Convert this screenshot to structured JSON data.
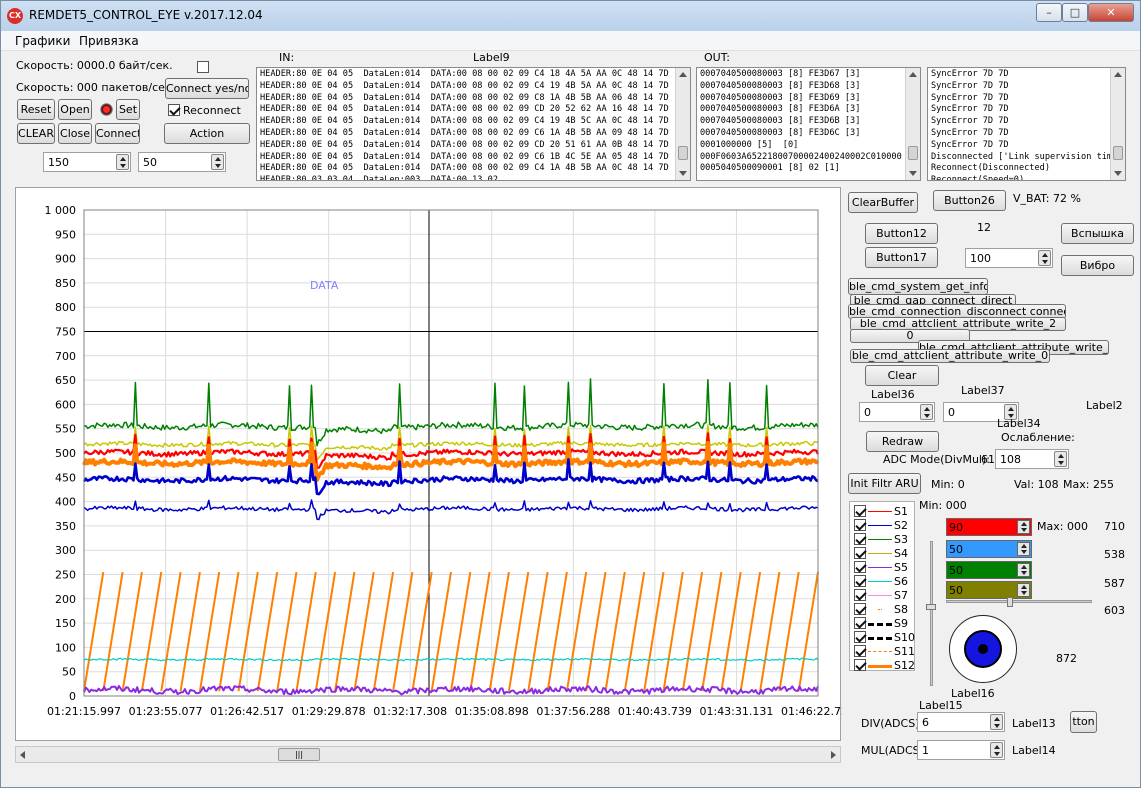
{
  "window": {
    "title": "REMDET5_CONTROL_EYE v.2017.12.04",
    "icon_label": "CX",
    "minimize": "–",
    "maximize": "□",
    "close": "✕"
  },
  "menu": [
    "Графики",
    "Привязка"
  ],
  "status": {
    "speed_bytes": "Скорость: 0000.0 байт/сек.",
    "speed_packets": "Скорость: 000 пакетов/сек."
  },
  "buttons": {
    "connect_yes_no": "Connect yes/no",
    "reset": "Reset",
    "open": "Open",
    "set": "Set",
    "clear_caps": "CLEAR",
    "close": "Close",
    "connect": "Connect",
    "action": "Action",
    "clear_buffer": "ClearBuffer",
    "button26": "Button26",
    "button12": "Button12",
    "button17": "Button17",
    "vspyshka": "Вспышка",
    "vibro": "Вибро",
    "ble_get_info": "ble_cmd_system_get_info",
    "ble_gap_connect": "ble_cmd_gap_connect_direct",
    "ble_disconnect": "ble_cmd_connection_disconnect connection",
    "ble_write2": "ble_cmd_attclient_attribute_write_2",
    "zero": "0",
    "ble_write1": "ble_cmd_attclient_attribute_write_1",
    "ble_write0": "ble_cmd_attclient_attribute_write_0",
    "clear": "Clear",
    "redraw": "Redraw",
    "init_filtr": "Init Filtr ARU",
    "tton": "tton"
  },
  "reconnect": {
    "label": "Reconnect",
    "checked": true
  },
  "spins": {
    "a": "150",
    "b": "50",
    "s100": "100",
    "l36": "0",
    "l37": "0",
    "adc": "108",
    "div": "6",
    "mul": "1"
  },
  "labels": {
    "in": "IN:",
    "label9": "Label9",
    "out": "OUT:",
    "vbat": "V_BAT:  72  %",
    "n12": "12",
    "label36": "Label36",
    "label37": "Label37",
    "label2": "Label2",
    "label34": "Label34",
    "oslablenie": "Ослабление:",
    "adc_mode": "ADC Mode(DivMul):",
    "adc_val": "61",
    "min_init": "Min:  0",
    "val_init": "Val:  108",
    "max_init": "Max:  255",
    "min2": "Min:  000",
    "max2": "Max:  000",
    "n710": "710",
    "n538": "538",
    "n587": "587",
    "n603": "603",
    "n872": "872",
    "label16": "Label16",
    "label15": "Label15",
    "div_lbl": "DIV(ADCS)",
    "label13": "Label13",
    "mul_lbl": "MUL(ADCS)",
    "label14": "Label14"
  },
  "in_log": [
    "HEADER:80 0E 04 05  DataLen:014  DATA:00 08 00 02 09 C4 18 4A 5A AA 0C 48 14 7D",
    "HEADER:80 0E 04 05  DataLen:014  DATA:00 08 00 02 09 C4 19 4B 5A AA 0C 48 14 7D",
    "HEADER:80 0E 04 05  DataLen:014  DATA:00 08 00 02 09 C8 1A 4B 5B AA 06 48 14 7D",
    "HEADER:80 0E 04 05  DataLen:014  DATA:00 08 00 02 09 CD 20 52 62 AA 16 48 14 7D",
    "HEADER:80 0E 04 05  DataLen:014  DATA:00 08 00 02 09 C4 19 4B 5C AA 0C 48 14 7D",
    "HEADER:80 0E 04 05  DataLen:014  DATA:00 08 00 02 09 C6 1A 4B 5B AA 09 48 14 7D",
    "HEADER:80 0E 04 05  DataLen:014  DATA:00 08 00 02 09 CD 20 51 61 AA 0B 48 14 7D",
    "HEADER:80 0E 04 05  DataLen:014  DATA:00 08 00 02 09 C6 1B 4C 5E AA 05 48 14 7D",
    "HEADER:80 0E 04 05  DataLen:014  DATA:00 08 00 02 09 C4 1A 4B 5B AA 0C 48 14 7D",
    "HEADER:80 03 03 04  DataLen:003  DATA:00 13 02"
  ],
  "out_log": [
    "0007040500080003 [8] FE3D67 [3]",
    "0007040500080003 [8] FE3D68 [3]",
    "0007040500080003 [8] FE3D69 [3]",
    "0007040500080003 [8] FE3D6A [3]",
    "0007040500080003 [8] FE3D6B [3]",
    "0007040500080003 [8] FE3D6C [3]",
    "0001000000 [5]  [0]",
    "000F0603A65221800700002400240002C010000 [1",
    "0005040500090001 [8] 02 [1]"
  ],
  "sys_log": [
    "SyncError 7D 7D",
    "SyncError 7D 7D",
    "SyncError 7D 7D",
    "SyncError 7D 7D",
    "SyncError 7D 7D",
    "SyncError 7D 7D",
    "SyncError 7D 7D",
    "Disconnected ['Link supervision tim",
    "Reconnect(Disconnected)",
    "Reconnect(Speed=0)"
  ],
  "series_list": [
    {
      "name": "S1",
      "color": "#ff0000",
      "style": "solid",
      "checked": true
    },
    {
      "name": "S2",
      "color": "#0000cc",
      "style": "solid",
      "checked": true
    },
    {
      "name": "S3",
      "color": "#008000",
      "style": "solid",
      "checked": true
    },
    {
      "name": "S4",
      "color": "#b8b800",
      "style": "solid",
      "checked": true
    },
    {
      "name": "S5",
      "color": "#8a2be2",
      "style": "solid",
      "checked": true
    },
    {
      "name": "S6",
      "color": "#00cccc",
      "style": "solid",
      "checked": true
    },
    {
      "name": "S7",
      "color": "#ff88cc",
      "style": "solid",
      "checked": true
    },
    {
      "name": "S8",
      "color": "#ff8000",
      "style": "dot",
      "checked": true
    },
    {
      "name": "S9",
      "color": "#000000",
      "style": "dash",
      "checked": true
    },
    {
      "name": "S10",
      "color": "#000000",
      "style": "dash",
      "checked": true
    },
    {
      "name": "S11",
      "color": "#ff8000",
      "style": "dashdot",
      "checked": true
    },
    {
      "name": "S12",
      "color": "#ff8000",
      "style": "thick",
      "checked": true
    }
  ],
  "color_bars": [
    {
      "value": "90",
      "color": "#ff0000"
    },
    {
      "value": "50",
      "color": "#3399ff"
    },
    {
      "value": "50",
      "color": "#008000"
    },
    {
      "value": "50",
      "color": "#808000"
    }
  ],
  "chart_data": {
    "type": "line",
    "annotation": "DATA",
    "ylim": [
      0,
      1000
    ],
    "y_ticks": [
      "0",
      "50",
      "100",
      "150",
      "200",
      "250",
      "300",
      "350",
      "400",
      "450",
      "500",
      "550",
      "600",
      "650",
      "700",
      "750",
      "800",
      "850",
      "900",
      "950",
      "1 000"
    ],
    "x_ticks": [
      "01:21:15.997",
      "01:23:55.077",
      "01:26:42.517",
      "01:29:29.878",
      "01:32:17.308",
      "01:35:08.898",
      "01:37:56.288",
      "01:40:43.739",
      "01:43:31.131",
      "01:46:22.721"
    ],
    "grid": true,
    "series": [
      {
        "name": "S3",
        "color": "#008000",
        "base": 555,
        "noise": 6,
        "width": 1.5,
        "drop": 35
      },
      {
        "name": "S4",
        "color": "#c8c800",
        "base": 518,
        "noise": 4,
        "width": 1.5,
        "drop": 30
      },
      {
        "name": "S1",
        "color": "#ff0000",
        "base": 500,
        "noise": 5,
        "width": 2.2,
        "drop": 30
      },
      {
        "name": "S12",
        "color": "#ff8000",
        "base": 480,
        "noise": 5,
        "width": 4,
        "drop": 30
      },
      {
        "name": "S2",
        "color": "#0000cc",
        "base": 445,
        "noise": 5,
        "width": 2.6,
        "drop": 28
      },
      {
        "name": "S2b",
        "color": "#0000cc",
        "base": 385,
        "noise": 4,
        "width": 1.5,
        "drop": 20
      },
      {
        "name": "S6",
        "color": "#00cccc",
        "base": 75,
        "noise": 2,
        "width": 1.2,
        "drop": 0
      },
      {
        "name": "S5",
        "color": "#8a2be2",
        "base": 12,
        "noise": 6,
        "width": 2,
        "drop": 0
      }
    ],
    "sawtooth": {
      "color": "#ff8000",
      "min": 10,
      "max": 255,
      "periods": 38
    }
  }
}
